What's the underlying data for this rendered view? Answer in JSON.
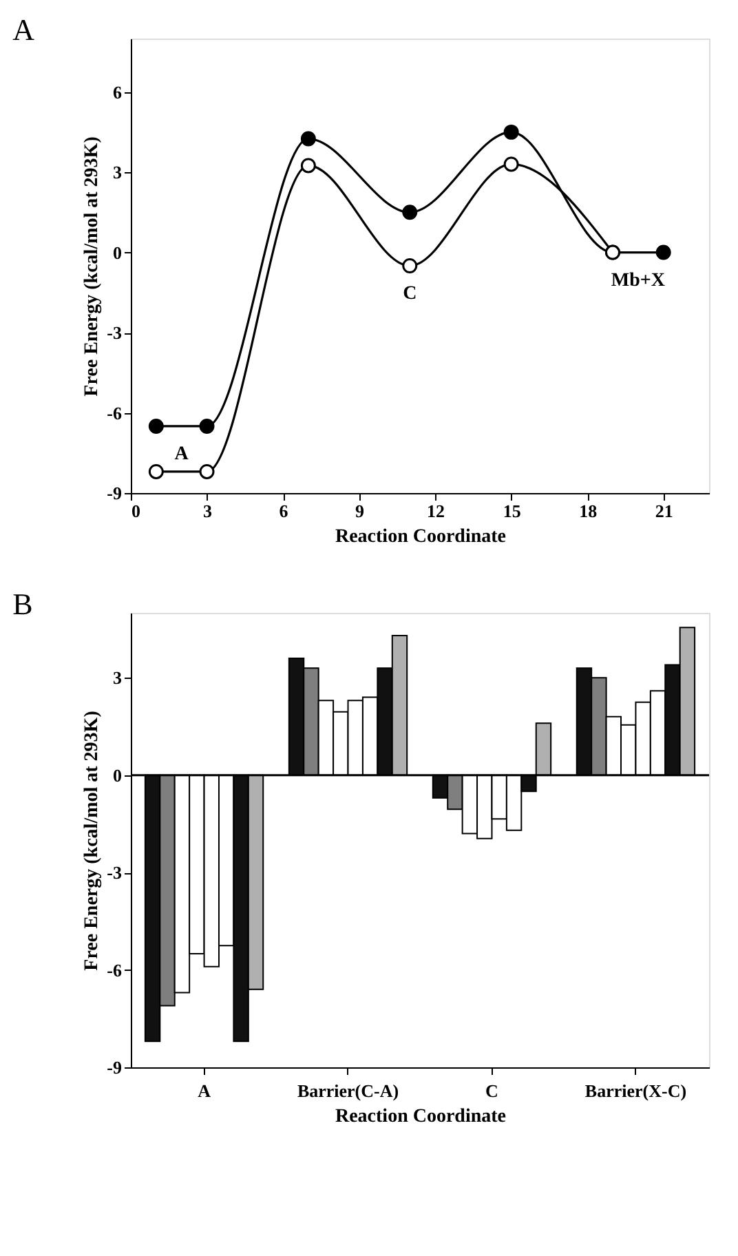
{
  "chart_data": [
    {
      "type": "line",
      "title": "A",
      "xlabel": "Reaction Coordinate",
      "ylabel": "Free Energy (kcal/mol at 293K)",
      "xlim": [
        0,
        22.8
      ],
      "ylim": [
        -9,
        8
      ],
      "xticks": [
        0,
        3,
        6,
        9,
        12,
        15,
        18,
        21
      ],
      "yticks": [
        -9,
        -6,
        -3,
        0,
        3,
        6
      ],
      "marker": "circle",
      "grid": false,
      "series": [
        {
          "color": "#000000",
          "x": [
            1,
            3,
            7,
            11,
            15,
            19,
            21
          ],
          "values": [
            -6.5,
            -6.5,
            4.25,
            1.5,
            4.5,
            0,
            0
          ]
        },
        {
          "color": "#000000",
          "x": [
            1,
            3,
            7,
            11,
            15,
            19
          ],
          "values": [
            -8.2,
            -8.2,
            3.25,
            -0.5,
            3.3,
            0
          ]
        }
      ],
      "annotations": [
        {
          "text": "A",
          "x": 2,
          "y": -6.5
        },
        {
          "text": "C",
          "x": 11,
          "y": -0.5
        },
        {
          "text": "Mb+X",
          "x": 20,
          "y": 0
        }
      ]
    },
    {
      "type": "bar",
      "title": "B",
      "xlabel": "Reaction Coordinate",
      "ylabel": "Free Energy (kcal/mol at 293K)",
      "categories": [
        "A",
        "Barrier(C-A)",
        "C",
        "Barrier(X-C)"
      ],
      "ylim": [
        -9,
        5
      ],
      "yticks": [
        -9,
        -6,
        -3,
        0,
        3
      ],
      "grid": false,
      "ref_lines": [
        {
          "axis": "y",
          "value": 0,
          "color": "#000000"
        }
      ],
      "series": [
        {
          "color": "#111111",
          "values": [
            -8.2,
            3.6,
            -0.7,
            3.3
          ]
        },
        {
          "color": "#7f7f7f",
          "values": [
            -7.1,
            3.3,
            -1.05,
            3.0
          ]
        },
        {
          "color": "#ffffff",
          "values": [
            -6.7,
            2.3,
            -1.8,
            1.8
          ]
        },
        {
          "color": "#ffffff",
          "values": [
            -5.5,
            1.95,
            -1.95,
            1.55
          ]
        },
        {
          "color": "#ffffff",
          "values": [
            -5.9,
            2.3,
            -1.35,
            2.25
          ]
        },
        {
          "color": "#ffffff",
          "values": [
            -5.25,
            2.4,
            -1.7,
            2.6
          ]
        },
        {
          "color": "#111111",
          "values": [
            -8.2,
            3.3,
            -0.5,
            3.4
          ]
        },
        {
          "color": "#b0b0b0",
          "values": [
            -6.6,
            4.3,
            1.6,
            4.55
          ]
        }
      ]
    }
  ]
}
